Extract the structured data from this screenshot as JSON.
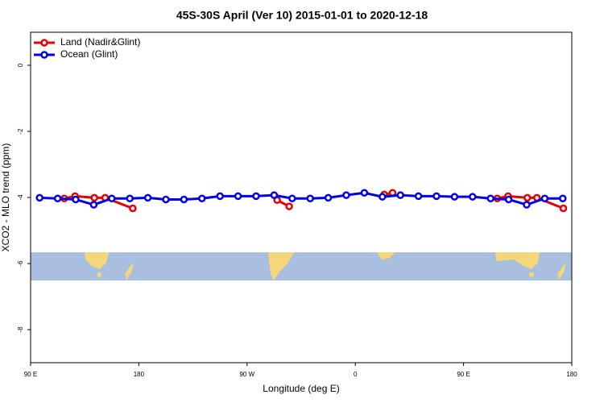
{
  "chart_data": {
    "type": "line",
    "title": "45S-30S April (Ver 10)   2015-01-01 to 2020-12-18",
    "xlabel": "Longitude (deg E)",
    "ylabel": "XCO2 - MLO trend (ppm)",
    "xlim": [
      90,
      540
    ],
    "ylim": [
      -9,
      1
    ],
    "xticks": [
      {
        "value": 90,
        "label": "90 E"
      },
      180,
      {
        "value": 270,
        "label": "90 W"
      },
      {
        "value": 360,
        "label": "0"
      },
      {
        "value": 450,
        "label": "90 E"
      },
      {
        "value": 540,
        "label": "180"
      }
    ],
    "yticks": [
      0,
      -2,
      -4,
      -6,
      -8
    ],
    "legend": "top-left",
    "series": [
      {
        "name": "Land (Nadir&Glint)",
        "color": "#e60000",
        "x": [
          118,
          127,
          143,
          152,
          175,
          null,
          295,
          305,
          null,
          384,
          391,
          null,
          478,
          487,
          503,
          511,
          533
        ],
        "values": [
          -4.03,
          -3.96,
          -4.01,
          -4.01,
          -4.33,
          null,
          -4.08,
          -4.27,
          null,
          -3.91,
          -3.86,
          null,
          -4.03,
          -3.96,
          -4.01,
          -4.01,
          -4.33
        ]
      },
      {
        "name": "Ocean (Glint)",
        "color": "#0000e6",
        "x": [
          97.5,
          112.5,
          127.5,
          142.5,
          157.5,
          172.5,
          187.5,
          202.5,
          217.5,
          232.5,
          247.5,
          262.5,
          277.5,
          292.5,
          307.5,
          322.5,
          337.5,
          352.5,
          367.5,
          382.5,
          397.5,
          412.5,
          427.5,
          442.5,
          457.5,
          472.5,
          487.5,
          502.5,
          517.5,
          532.5
        ],
        "values": [
          -4.01,
          -4.03,
          -4.06,
          -4.22,
          -4.03,
          -4.03,
          -4.01,
          -4.06,
          -4.06,
          -4.03,
          -3.96,
          -3.96,
          -3.96,
          -3.93,
          -4.03,
          -4.03,
          -4.01,
          -3.93,
          -3.86,
          -3.98,
          -3.93,
          -3.96,
          -3.96,
          -3.98,
          -3.98,
          -4.03,
          -4.06,
          -4.22,
          -4.03,
          -4.03
        ]
      }
    ]
  }
}
